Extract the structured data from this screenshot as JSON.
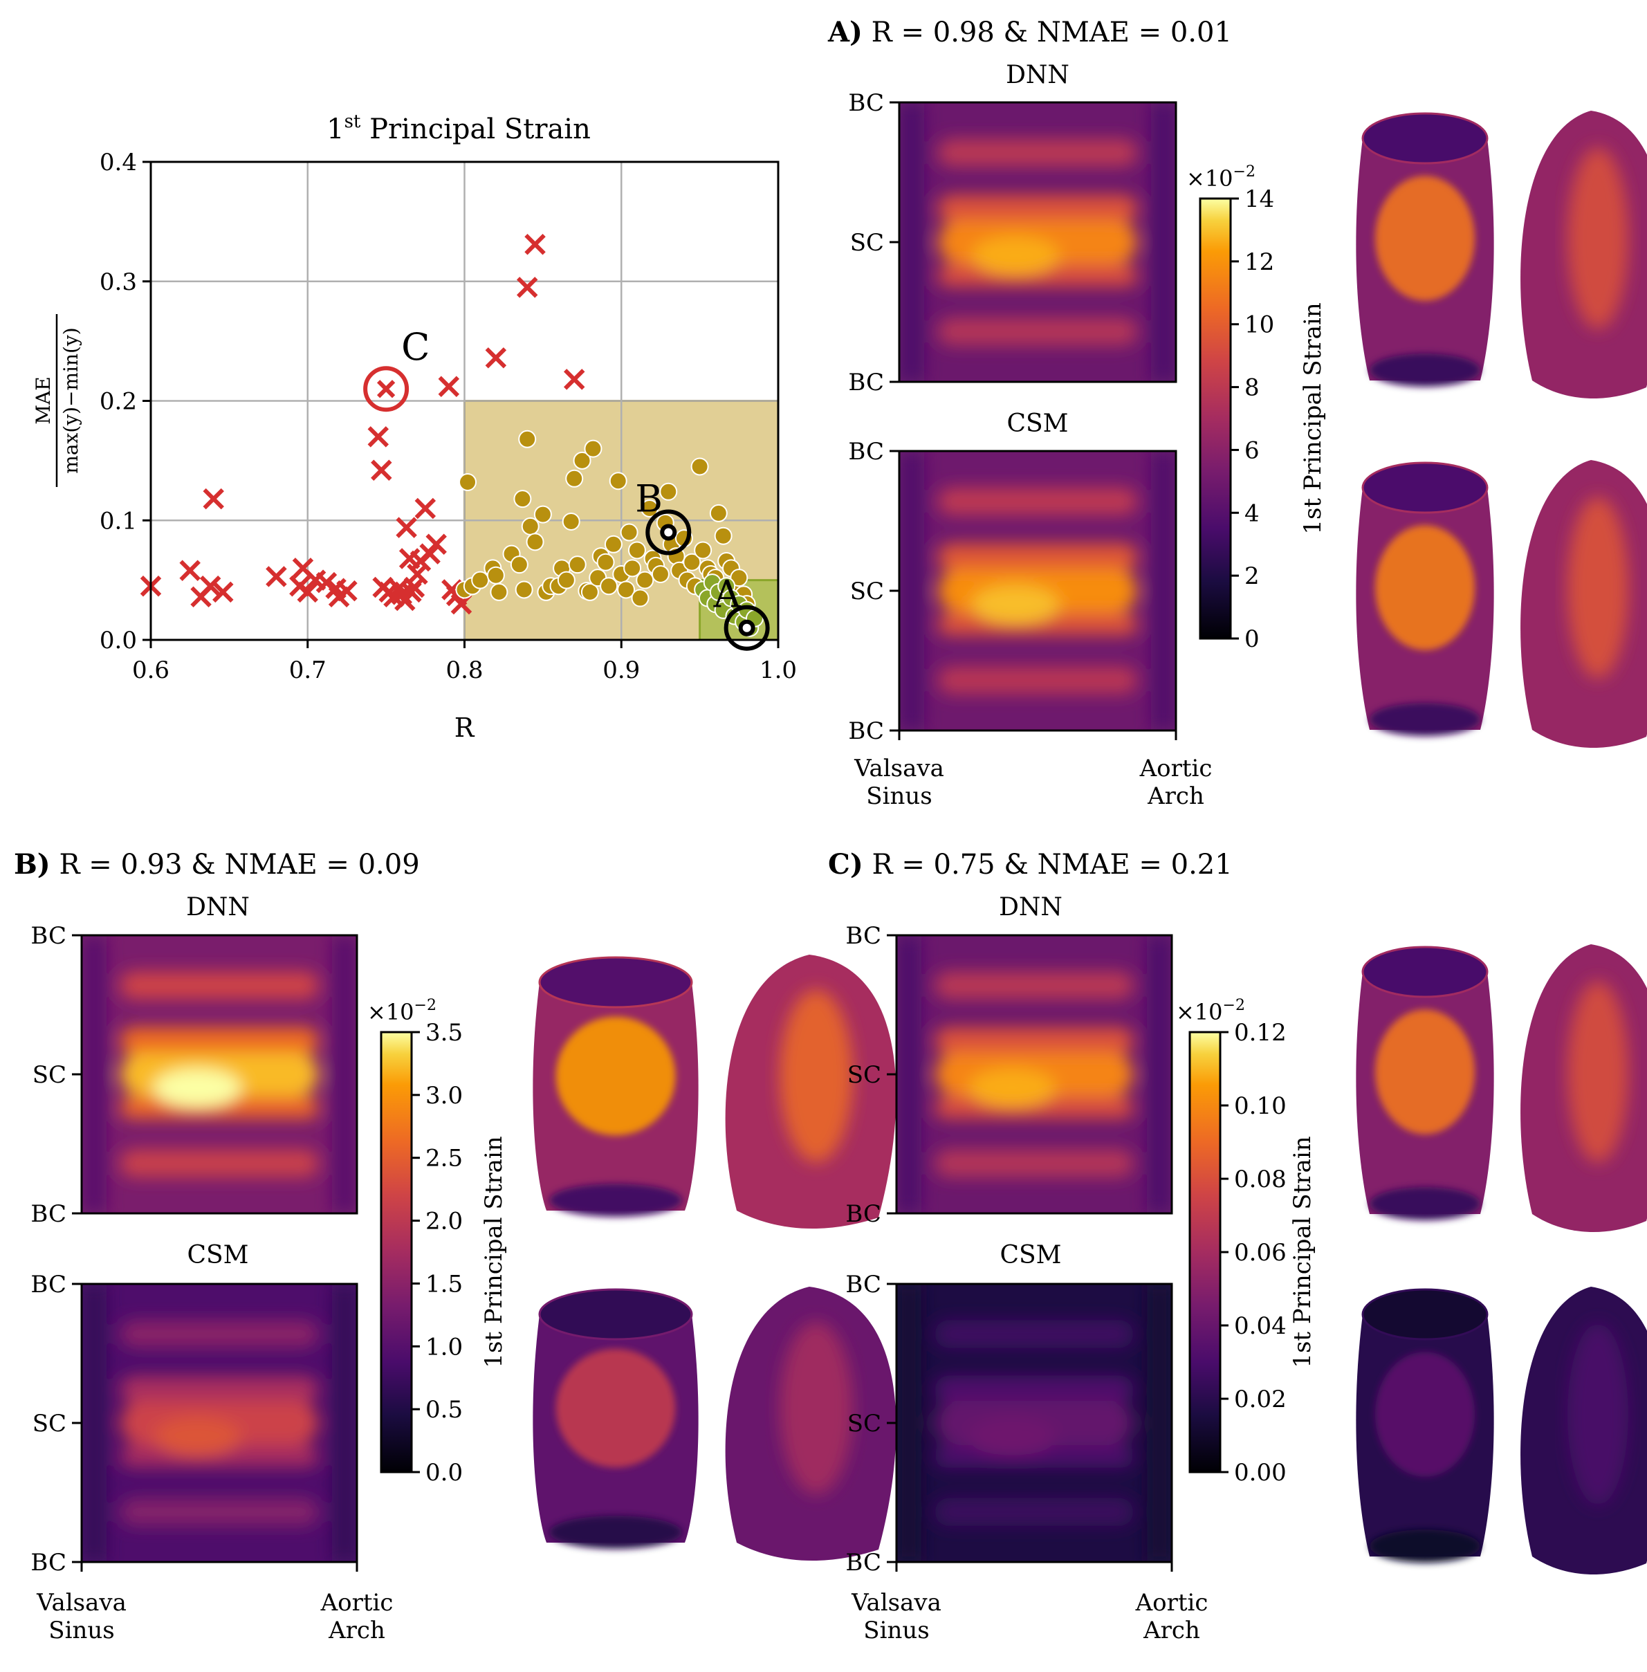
{
  "colormap": "inferno",
  "colors": {
    "bad_marker": "#d62f2f",
    "good_marker": "#b8900f",
    "best_marker": "#8aa62a",
    "good_region": "#d7bf72",
    "best_region": "#a9bd4c",
    "grid": "#b0b0b0"
  },
  "scatter": {
    "title_main": "1",
    "title_sup": "st",
    "title_rest": " Principal Strain",
    "xlabel": "R",
    "ylabel_num": "MAE",
    "ylabel_den": "max(y)−min(y)",
    "xlim": [
      0.6,
      1.0
    ],
    "ylim": [
      0.0,
      0.4
    ],
    "xticks": [
      "0.6",
      "0.7",
      "0.8",
      "0.9",
      "1.0"
    ],
    "yticks": [
      "0.0",
      "0.1",
      "0.2",
      "0.3",
      "0.4"
    ],
    "good_region": {
      "x": [
        0.8,
        1.0
      ],
      "y": [
        0.0,
        0.2
      ]
    },
    "best_region": {
      "x": [
        0.95,
        1.0
      ],
      "y": [
        0.0,
        0.05
      ]
    },
    "highlights": [
      {
        "label": "A",
        "r": 0.98,
        "nmae": 0.01
      },
      {
        "label": "B",
        "r": 0.93,
        "nmae": 0.09
      },
      {
        "label": "C",
        "r": 0.75,
        "nmae": 0.21
      }
    ]
  },
  "chart_data": {
    "type": "scatter",
    "title": "1st Principal Strain",
    "xlabel": "R",
    "ylabel": "MAE / (max(y)−min(y))",
    "xlim": [
      0.6,
      1.0
    ],
    "ylim": [
      0.0,
      0.4
    ],
    "grid": true,
    "series": [
      {
        "marker": "x",
        "color": "#d62f2f",
        "points": [
          [
            0.6,
            0.045
          ],
          [
            0.625,
            0.058
          ],
          [
            0.632,
            0.036
          ],
          [
            0.638,
            0.045
          ],
          [
            0.64,
            0.118
          ],
          [
            0.646,
            0.04
          ],
          [
            0.68,
            0.053
          ],
          [
            0.695,
            0.045
          ],
          [
            0.697,
            0.06
          ],
          [
            0.7,
            0.04
          ],
          [
            0.705,
            0.05
          ],
          [
            0.712,
            0.048
          ],
          [
            0.718,
            0.043
          ],
          [
            0.72,
            0.036
          ],
          [
            0.725,
            0.041
          ],
          [
            0.745,
            0.17
          ],
          [
            0.747,
            0.142
          ],
          [
            0.748,
            0.044
          ],
          [
            0.752,
            0.04
          ],
          [
            0.755,
            0.036
          ],
          [
            0.758,
            0.043
          ],
          [
            0.76,
            0.038
          ],
          [
            0.762,
            0.033
          ],
          [
            0.763,
            0.094
          ],
          [
            0.765,
            0.068
          ],
          [
            0.766,
            0.04
          ],
          [
            0.768,
            0.044
          ],
          [
            0.77,
            0.055
          ],
          [
            0.772,
            0.066
          ],
          [
            0.775,
            0.11
          ],
          [
            0.778,
            0.072
          ],
          [
            0.782,
            0.08
          ],
          [
            0.79,
            0.212
          ],
          [
            0.792,
            0.042
          ],
          [
            0.795,
            0.037
          ],
          [
            0.798,
            0.03
          ],
          [
            0.82,
            0.236
          ],
          [
            0.84,
            0.295
          ],
          [
            0.845,
            0.331
          ],
          [
            0.87,
            0.218
          ]
        ]
      },
      {
        "marker": "o",
        "color": "#b8900f",
        "points": [
          [
            0.8,
            0.042
          ],
          [
            0.802,
            0.132
          ],
          [
            0.805,
            0.045
          ],
          [
            0.81,
            0.05
          ],
          [
            0.818,
            0.06
          ],
          [
            0.82,
            0.054
          ],
          [
            0.822,
            0.04
          ],
          [
            0.83,
            0.072
          ],
          [
            0.835,
            0.063
          ],
          [
            0.837,
            0.118
          ],
          [
            0.838,
            0.042
          ],
          [
            0.84,
            0.168
          ],
          [
            0.842,
            0.095
          ],
          [
            0.845,
            0.082
          ],
          [
            0.85,
            0.105
          ],
          [
            0.852,
            0.04
          ],
          [
            0.855,
            0.045
          ],
          [
            0.86,
            0.045
          ],
          [
            0.862,
            0.06
          ],
          [
            0.865,
            0.05
          ],
          [
            0.868,
            0.099
          ],
          [
            0.87,
            0.135
          ],
          [
            0.872,
            0.063
          ],
          [
            0.875,
            0.15
          ],
          [
            0.878,
            0.041
          ],
          [
            0.88,
            0.04
          ],
          [
            0.882,
            0.16
          ],
          [
            0.885,
            0.052
          ],
          [
            0.887,
            0.07
          ],
          [
            0.89,
            0.065
          ],
          [
            0.892,
            0.045
          ],
          [
            0.895,
            0.08
          ],
          [
            0.898,
            0.133
          ],
          [
            0.9,
            0.055
          ],
          [
            0.903,
            0.042
          ],
          [
            0.905,
            0.09
          ],
          [
            0.907,
            0.06
          ],
          [
            0.91,
            0.075
          ],
          [
            0.912,
            0.035
          ],
          [
            0.915,
            0.05
          ],
          [
            0.918,
            0.11
          ],
          [
            0.92,
            0.068
          ],
          [
            0.922,
            0.062
          ],
          [
            0.925,
            0.055
          ],
          [
            0.928,
            0.098
          ],
          [
            0.93,
            0.124
          ],
          [
            0.932,
            0.08
          ],
          [
            0.935,
            0.07
          ],
          [
            0.937,
            0.058
          ],
          [
            0.94,
            0.085
          ],
          [
            0.942,
            0.05
          ],
          [
            0.945,
            0.065
          ],
          [
            0.947,
            0.045
          ],
          [
            0.95,
            0.145
          ],
          [
            0.952,
            0.075
          ],
          [
            0.955,
            0.06
          ],
          [
            0.957,
            0.055
          ],
          [
            0.96,
            0.052
          ],
          [
            0.962,
            0.106
          ],
          [
            0.965,
            0.087
          ],
          [
            0.967,
            0.066
          ],
          [
            0.97,
            0.06
          ],
          [
            0.972,
            0.042
          ],
          [
            0.975,
            0.052
          ],
          [
            0.978,
            0.038
          ],
          [
            0.98,
            0.03
          ]
        ]
      },
      {
        "marker": "o",
        "color": "#8aa62a",
        "points": [
          [
            0.952,
            0.042
          ],
          [
            0.955,
            0.035
          ],
          [
            0.958,
            0.048
          ],
          [
            0.96,
            0.03
          ],
          [
            0.962,
            0.04
          ],
          [
            0.965,
            0.025
          ],
          [
            0.967,
            0.045
          ],
          [
            0.97,
            0.035
          ],
          [
            0.972,
            0.02
          ],
          [
            0.975,
            0.03
          ],
          [
            0.978,
            0.015
          ],
          [
            0.98,
            0.025
          ],
          [
            0.982,
            0.01
          ],
          [
            0.985,
            0.018
          ]
        ]
      }
    ]
  },
  "panels": [
    {
      "id": "A",
      "letter": "A)",
      "title": " R = 0.98 & NMAE = 0.01",
      "dnn_label": "DNN",
      "csm_label": "CSM",
      "yticks": [
        "BC",
        "SC",
        "BC"
      ],
      "xticks": [
        "Valsava",
        "Sinus",
        "Aortic",
        "Arch"
      ],
      "colorbar_exp": "×10",
      "colorbar_exp_sup": "−2",
      "colorbar_ticks": [
        "0",
        "2",
        "4",
        "6",
        "8",
        "10",
        "12",
        "14"
      ],
      "colorbar_range": [
        0,
        14
      ],
      "colorbar_label": "1st Principal Strain",
      "dnn_intensity": 0.82,
      "csm_intensity": 0.84
    },
    {
      "id": "B",
      "letter": "B)",
      "title": " R = 0.93 & NMAE = 0.09",
      "dnn_label": "DNN",
      "csm_label": "CSM",
      "yticks": [
        "BC",
        "SC",
        "BC"
      ],
      "xticks": [
        "Valsava",
        "Sinus",
        "Aortic",
        "Arch"
      ],
      "colorbar_exp": "×10",
      "colorbar_exp_sup": "−2",
      "colorbar_ticks": [
        "0.0",
        "0.5",
        "1.0",
        "1.5",
        "2.0",
        "2.5",
        "3.0",
        "3.5"
      ],
      "colorbar_range": [
        0,
        3.5
      ],
      "colorbar_label": "1st Principal Strain",
      "dnn_intensity": 0.92,
      "csm_intensity": 0.62
    },
    {
      "id": "C",
      "letter": "C)",
      "title": " R = 0.75 & NMAE = 0.21",
      "dnn_label": "DNN",
      "csm_label": "CSM",
      "yticks": [
        "BC",
        "SC",
        "BC"
      ],
      "xticks": [
        "Valsava",
        "Sinus",
        "Aortic",
        "Arch"
      ],
      "colorbar_exp": "×10",
      "colorbar_exp_sup": "−2",
      "colorbar_ticks": [
        "0.00",
        "0.02",
        "0.04",
        "0.06",
        "0.08",
        "0.10",
        "0.12"
      ],
      "colorbar_range": [
        0,
        0.12
      ],
      "colorbar_label": "1st Principal Strain",
      "dnn_intensity": 0.82,
      "csm_intensity": 0.32
    }
  ]
}
